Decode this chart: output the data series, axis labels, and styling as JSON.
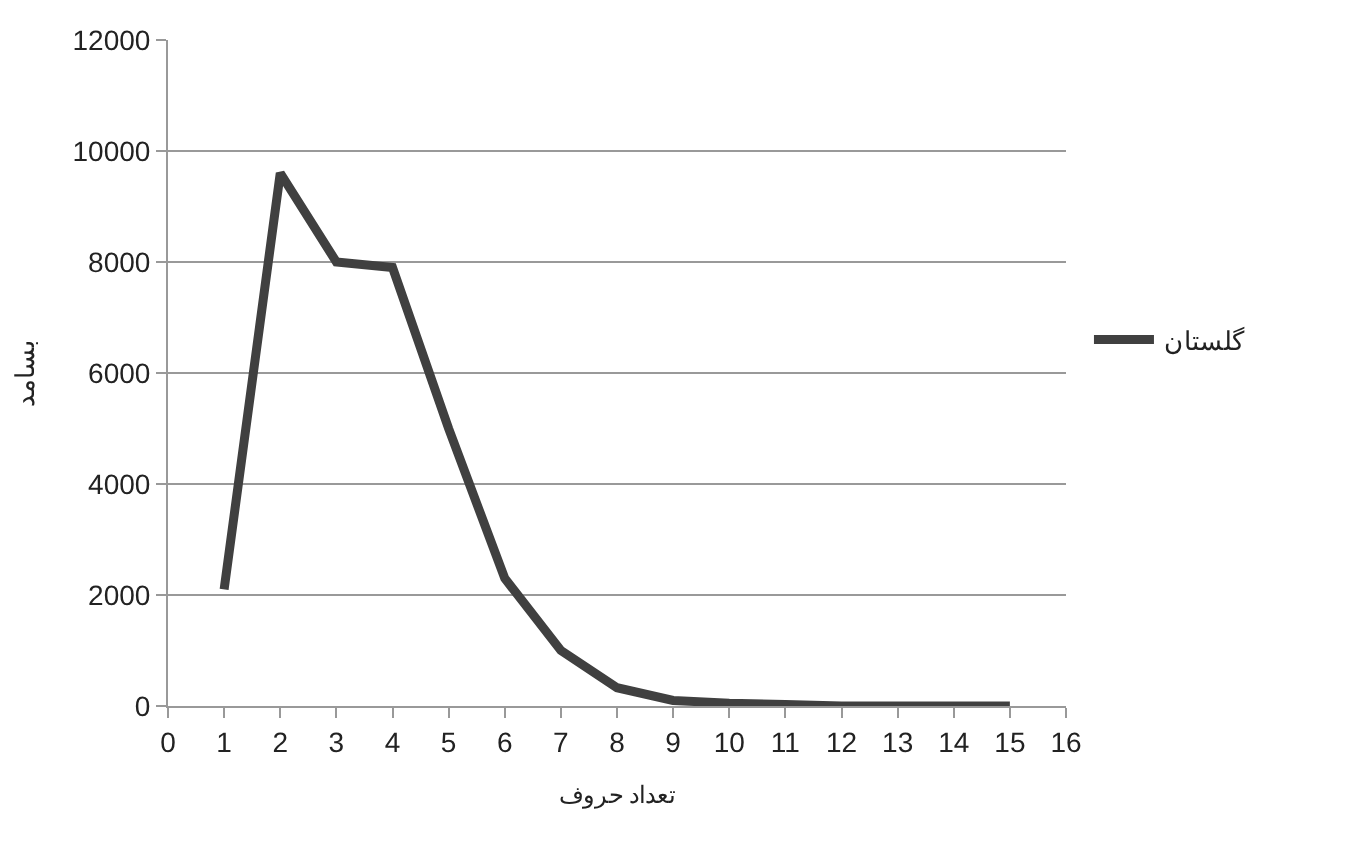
{
  "chart_data": {
    "type": "line",
    "xlabel": "تعداد حروف",
    "ylabel": "بسامد",
    "x": [
      1,
      2,
      3,
      4,
      5,
      6,
      7,
      8,
      9,
      10,
      11,
      12,
      13,
      14,
      15
    ],
    "series": [
      {
        "name": "گلستان",
        "color": "#404040",
        "values": [
          2100,
          9600,
          8000,
          7900,
          5000,
          2300,
          1000,
          330,
          100,
          50,
          25,
          0,
          0,
          0,
          0
        ]
      }
    ],
    "xlim": [
      0,
      16
    ],
    "xticks": [
      0,
      1,
      2,
      3,
      4,
      5,
      6,
      7,
      8,
      9,
      10,
      11,
      12,
      13,
      14,
      15,
      16
    ],
    "ylim": [
      0,
      12000
    ],
    "yticks": [
      0,
      2000,
      4000,
      6000,
      8000,
      10000,
      12000
    ],
    "grid": "y",
    "legend": "right",
    "marker": "none",
    "line_style": "solid"
  }
}
